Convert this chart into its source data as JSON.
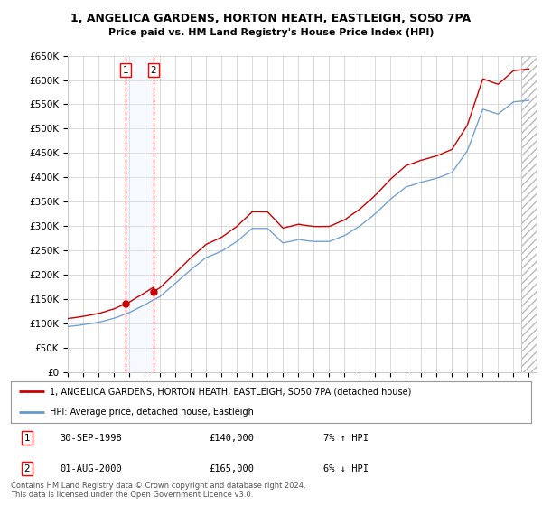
{
  "title1": "1, ANGELICA GARDENS, HORTON HEATH, EASTLEIGH, SO50 7PA",
  "title2": "Price paid vs. HM Land Registry's House Price Index (HPI)",
  "ylabel_ticks": [
    "£0",
    "£50K",
    "£100K",
    "£150K",
    "£200K",
    "£250K",
    "£300K",
    "£350K",
    "£400K",
    "£450K",
    "£500K",
    "£550K",
    "£600K",
    "£650K"
  ],
  "ytick_values": [
    0,
    50000,
    100000,
    150000,
    200000,
    250000,
    300000,
    350000,
    400000,
    450000,
    500000,
    550000,
    600000,
    650000
  ],
  "xlim_start": 1995.0,
  "xlim_end": 2025.5,
  "ylim_min": 0,
  "ylim_max": 650000,
  "transaction1_date": 1998.75,
  "transaction1_price": 140000,
  "transaction1_label": "1",
  "transaction2_date": 2000.583,
  "transaction2_price": 165000,
  "transaction2_label": "2",
  "legend_line1": "1, ANGELICA GARDENS, HORTON HEATH, EASTLEIGH, SO50 7PA (detached house)",
  "legend_line2": "HPI: Average price, detached house, Eastleigh",
  "table_row1": [
    "1",
    "30-SEP-1998",
    "£140,000",
    "7% ↑ HPI"
  ],
  "table_row2": [
    "2",
    "01-AUG-2000",
    "£165,000",
    "6% ↓ HPI"
  ],
  "footer": "Contains HM Land Registry data © Crown copyright and database right 2024.\nThis data is licensed under the Open Government Licence v3.0.",
  "line_color_red": "#cc0000",
  "line_color_blue": "#6699cc",
  "bg_color": "#ffffff",
  "grid_color": "#cccccc",
  "shade_color": "#ddeeff",
  "hatch_color": "#aaaaaa",
  "hpi_knots_x": [
    1995.0,
    1996.0,
    1997.0,
    1998.0,
    1999.0,
    2000.0,
    2001.0,
    2002.0,
    2003.0,
    2004.0,
    2005.0,
    2006.0,
    2007.0,
    2008.0,
    2009.0,
    2010.0,
    2011.0,
    2012.0,
    2013.0,
    2014.0,
    2015.0,
    2016.0,
    2017.0,
    2018.0,
    2019.0,
    2020.0,
    2021.0,
    2022.0,
    2023.0,
    2024.0,
    2025.0
  ],
  "hpi_knots_y": [
    93000,
    97000,
    102000,
    110000,
    122000,
    138000,
    155000,
    182000,
    210000,
    235000,
    248000,
    268000,
    295000,
    295000,
    265000,
    272000,
    268000,
    268000,
    280000,
    300000,
    325000,
    355000,
    380000,
    390000,
    398000,
    410000,
    455000,
    540000,
    530000,
    555000,
    558000
  ]
}
